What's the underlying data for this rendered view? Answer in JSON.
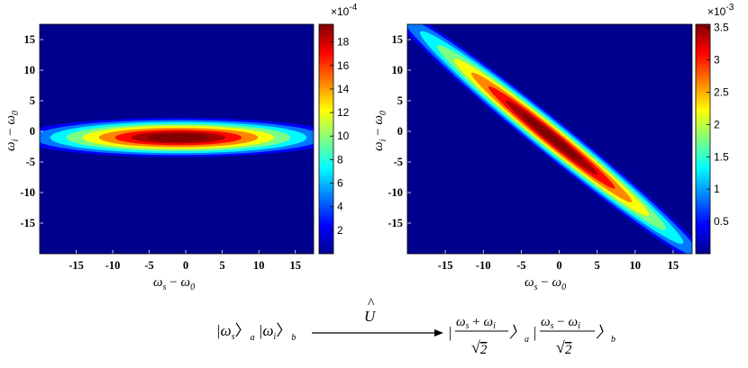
{
  "chart_data": [
    {
      "type": "heatmap",
      "xlabel": "ω_s − ω_0",
      "ylabel": "ω_i − ω_0",
      "xlim": [
        -20,
        17.5
      ],
      "ylim": [
        -20,
        17.5
      ],
      "xticks": [
        -15,
        -10,
        -5,
        0,
        5,
        10,
        15
      ],
      "yticks": [
        15,
        10,
        5,
        0,
        -5,
        -10,
        -15
      ],
      "colormap": "jet",
      "peak_center": [
        -1,
        -1
      ],
      "peak_value": 0.0019,
      "colorbar": {
        "min": 0,
        "max": 19.5,
        "exponent_label": "×10^-4",
        "ticks": [
          2,
          4,
          6,
          8,
          10,
          12,
          14,
          16,
          18
        ],
        "tick_labels": [
          "2",
          "4",
          "6",
          "8",
          "10",
          "12",
          "14",
          "16",
          "18"
        ]
      }
    },
    {
      "type": "heatmap",
      "xlabel": "ω_s − ω_0",
      "ylabel": "ω_i − ω_0",
      "xlim": [
        -20,
        17.5
      ],
      "ylim": [
        -20,
        17.5
      ],
      "xticks": [
        -15,
        -10,
        -5,
        0,
        5,
        10,
        15
      ],
      "yticks": [
        15,
        10,
        5,
        0,
        -5,
        -10,
        -15
      ],
      "colormap": "jet",
      "peak_center": [
        -1,
        -1
      ],
      "peak_value": 0.0035,
      "colorbar": {
        "min": 0,
        "max": 3.55,
        "exponent_label": "×10^-3",
        "ticks": [
          0.5,
          1,
          1.5,
          2,
          2.5,
          3,
          3.5
        ],
        "tick_labels": [
          "0.5",
          "1",
          "1.5",
          "2",
          "2.5",
          "3",
          "3.5"
        ]
      }
    }
  ],
  "equation": {
    "operator": "U",
    "operator_hat": "^",
    "ket_s": "ω",
    "sub_s": "s",
    "sub_a": "a",
    "ket_i": "ω",
    "sub_i": "i",
    "sub_b": "b",
    "plus_num": "+",
    "minus_num": "−",
    "sqrt2": "2",
    "sqrt_sign": "√"
  },
  "colors": {
    "background": "#ffffff",
    "colormap_low": "#00008f",
    "colormap_high": "#800000"
  }
}
